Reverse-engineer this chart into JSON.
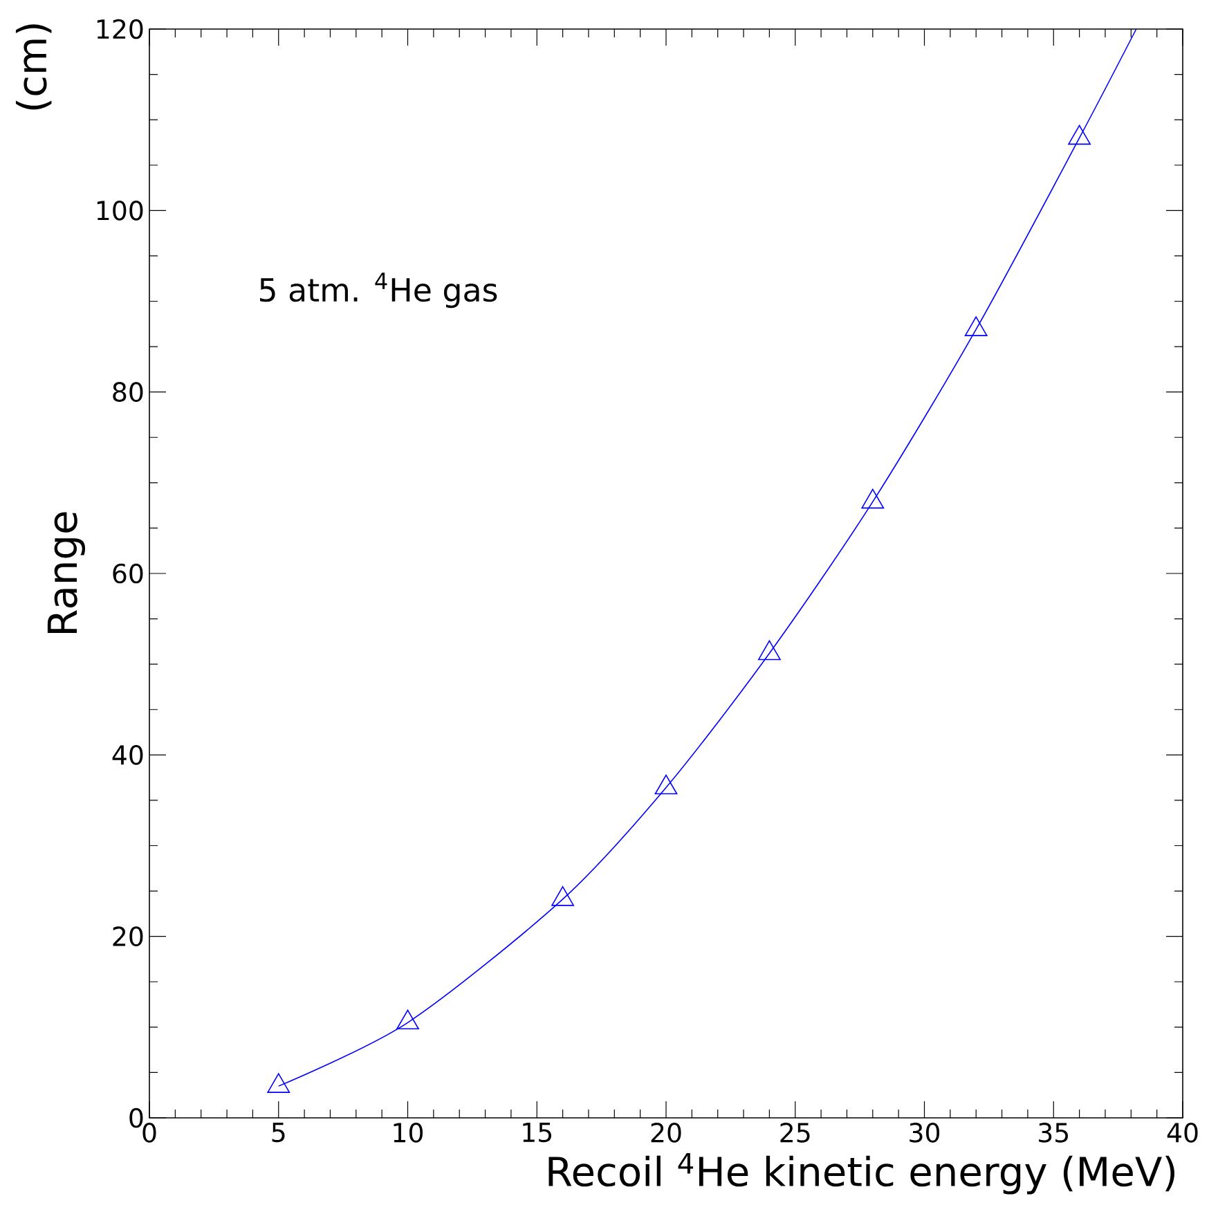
{
  "chart_data": {
    "type": "scatter",
    "xlabel": "Recoil $^{4}$He kinetic energy (MeV)",
    "ylabel": "Range",
    "annotations": [
      "5 atm. $^{4}$He gas",
      "(cm)"
    ],
    "xlim": [
      0,
      40
    ],
    "ylim": [
      0,
      120
    ],
    "xticks": [
      0,
      5,
      10,
      15,
      20,
      25,
      30,
      35,
      40
    ],
    "yticks": [
      0,
      20,
      40,
      60,
      80,
      100,
      120
    ],
    "grid": false,
    "series": [
      {
        "color": "#0000ff",
        "marker": "triangle",
        "x": [
          5,
          10,
          16,
          20,
          24,
          28,
          32,
          36
        ],
        "values": [
          3.5,
          10.5,
          24.1,
          36.4,
          51.2,
          67.9,
          86.9,
          108
        ]
      },
      {
        "type": "line",
        "color": "#0000ff",
        "marker": "none",
        "line_style": "solid",
        "x": [
          5,
          10,
          16,
          20,
          24,
          28,
          32,
          36,
          38.2
        ],
        "values": [
          3.5,
          10.5,
          24.1,
          36.4,
          51.2,
          67.9,
          86.9,
          108,
          120
        ]
      }
    ]
  }
}
